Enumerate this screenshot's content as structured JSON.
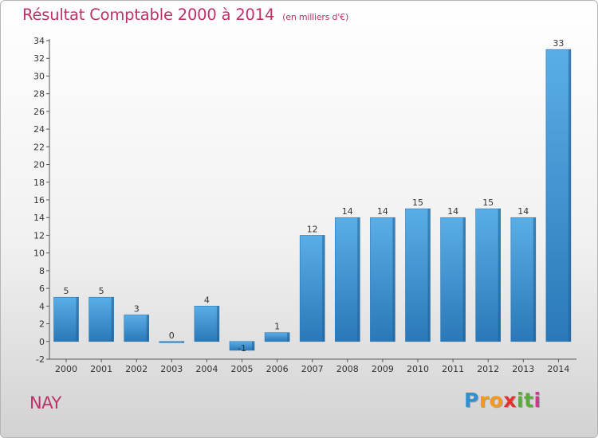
{
  "chart_data": {
    "type": "bar",
    "title": "Résultat Comptable 2000 à 2014",
    "subtitle": "(en milliers d'€)",
    "categories": [
      "2000",
      "2001",
      "2002",
      "2003",
      "2004",
      "2005",
      "2006",
      "2007",
      "2008",
      "2009",
      "2010",
      "2011",
      "2012",
      "2013",
      "2014"
    ],
    "values": [
      5,
      5,
      3,
      0,
      4,
      -1,
      1,
      12,
      14,
      14,
      15,
      14,
      15,
      14,
      33
    ],
    "value_labels": [
      "5",
      "5",
      "3",
      "0",
      "4",
      "-1",
      "1",
      "12",
      "14",
      "14",
      "15",
      "14",
      "15",
      "14",
      "33"
    ],
    "ylim": [
      -2,
      34
    ],
    "yticks": [
      "-2",
      "0",
      "2",
      "4",
      "6",
      "8",
      "10",
      "12",
      "14",
      "16",
      "18",
      "20",
      "22",
      "24",
      "26",
      "28",
      "30",
      "32",
      "34"
    ],
    "xlabel": "",
    "ylabel": "",
    "grid": false,
    "colors": {
      "bar_light": "#5aaee6",
      "bar_dark": "#2a78b8",
      "title": "#c0306a"
    }
  },
  "commune": "NAY",
  "logo": {
    "letters": [
      "P",
      "r",
      "o",
      "x",
      "i",
      "t",
      "i"
    ],
    "colors": [
      "#2f8fd0",
      "#f39a1e",
      "#f39a1e",
      "#e3312d",
      "#5aab3a",
      "#5aab3a",
      "#d13a8c"
    ]
  }
}
